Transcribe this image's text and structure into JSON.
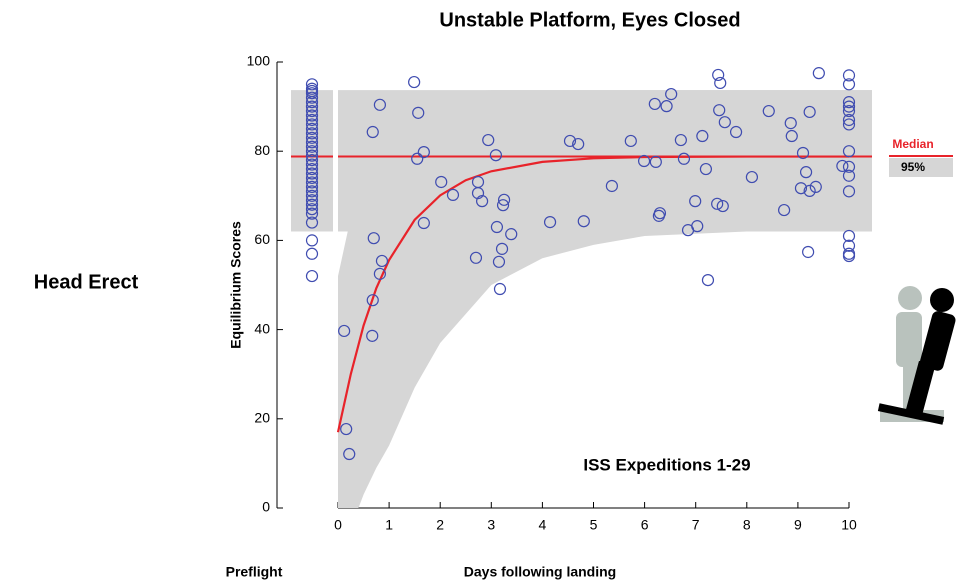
{
  "chart_data": {
    "type": "scatter",
    "title": "Unstable Platform, Eyes Closed",
    "row_label": "Head Erect",
    "xlabel": "Days following landing",
    "ylabel": "Equilibrium Scores",
    "preflight_label": "Preflight",
    "annotation": "ISS Expeditions 1-29",
    "xlim": [
      0,
      10
    ],
    "ylim": [
      0,
      100
    ],
    "xticks": [
      0,
      1,
      2,
      3,
      4,
      5,
      6,
      7,
      8,
      9,
      10
    ],
    "yticks": [
      0,
      20,
      40,
      60,
      80,
      100
    ],
    "median": 78.8,
    "range95": [
      62,
      93.7
    ],
    "band_color": "#d6d6d6",
    "median_color": "#e8232a",
    "legend": {
      "median": "Median",
      "range": "95%"
    },
    "preflight": {
      "color": "#3f4cb0",
      "values": [
        95,
        94,
        93.5,
        93,
        92,
        91,
        90,
        89,
        88,
        87,
        86,
        85,
        84,
        83,
        82,
        81,
        80,
        79,
        78,
        77,
        76,
        75,
        74,
        73,
        72,
        71,
        70,
        69,
        68,
        67,
        66,
        64,
        60,
        57,
        52
      ]
    },
    "series": [
      {
        "color": "#3f4cb0",
        "x": [
          0.12,
          0.16,
          0.22,
          0.86,
          0.67,
          0.68,
          0.7,
          0.68,
          0.82,
          0.82,
          1.49,
          1.57,
          1.55,
          1.68,
          1.68,
          2.02,
          2.25,
          2.7,
          2.74,
          2.74,
          2.82,
          2.94,
          3.09,
          3.11,
          3.15,
          3.17,
          3.21,
          3.23,
          3.25,
          3.39,
          4.15,
          4.54,
          4.7,
          4.81,
          5.36,
          5.73,
          5.99,
          6.2,
          6.22,
          6.28,
          6.3,
          6.43,
          6.52,
          6.71,
          6.77,
          6.85,
          6.99,
          7.03,
          7.13,
          7.2,
          7.24,
          7.42,
          7.44,
          7.48,
          7.46,
          7.53,
          7.57,
          7.79,
          8.1,
          8.43,
          8.73,
          8.86,
          8.88,
          9.1,
          9.06,
          9.16,
          9.2,
          9.23,
          9.23,
          9.35,
          9.41,
          9.87,
          10,
          10,
          10,
          10,
          10,
          10,
          10,
          10,
          10,
          10,
          10,
          10,
          10,
          10,
          10
        ],
        "values": [
          39.7,
          17.7,
          12.1,
          55.4,
          38.6,
          84.3,
          60.5,
          46.6,
          52.5,
          90.4,
          95.5,
          88.6,
          78.3,
          79.8,
          63.9,
          73.1,
          70.2,
          56.1,
          73.1,
          70.6,
          68.8,
          82.5,
          79.1,
          63,
          55.2,
          49.1,
          58.1,
          67.9,
          69.1,
          61.4,
          64.1,
          82.3,
          81.6,
          64.3,
          72.2,
          82.3,
          77.8,
          90.6,
          77.6,
          65.5,
          66.1,
          90.1,
          92.8,
          82.5,
          78.3,
          62.3,
          68.8,
          63.2,
          83.4,
          76,
          51.1,
          68.2,
          97.1,
          95.3,
          89.2,
          67.7,
          86.5,
          84.3,
          74.2,
          89,
          66.8,
          86.3,
          83.4,
          79.6,
          71.7,
          75.3,
          57.4,
          71.1,
          88.8,
          72,
          97.5,
          76.7,
          97,
          95,
          91,
          90,
          89,
          87,
          86,
          80,
          76.5,
          74.5,
          71,
          61,
          58.8,
          57,
          56.5
        ]
      }
    ],
    "fit": {
      "color": "#e8232a",
      "x": [
        0,
        0.25,
        0.5,
        0.75,
        1,
        1.5,
        2,
        2.5,
        3,
        4,
        5,
        6,
        8,
        10
      ],
      "values": [
        17,
        30,
        40.9,
        49.3,
        55.6,
        64.6,
        70.1,
        73.5,
        75.5,
        77.6,
        78.4,
        78.7,
        78.8,
        78.8
      ]
    },
    "envelope": {
      "color": "#d6d6d6",
      "x": [
        0,
        0.4,
        0.5,
        0.75,
        1,
        1.5,
        2,
        3,
        4,
        5,
        6,
        8,
        10.45
      ],
      "upper": [
        52,
        73,
        77,
        84,
        88,
        92,
        93,
        93.7,
        93.7,
        93.7,
        93.7,
        93.7,
        93.7
      ],
      "lower": [
        0,
        0,
        3,
        9,
        14,
        27,
        37,
        50,
        56,
        59,
        61,
        62,
        62
      ]
    }
  }
}
